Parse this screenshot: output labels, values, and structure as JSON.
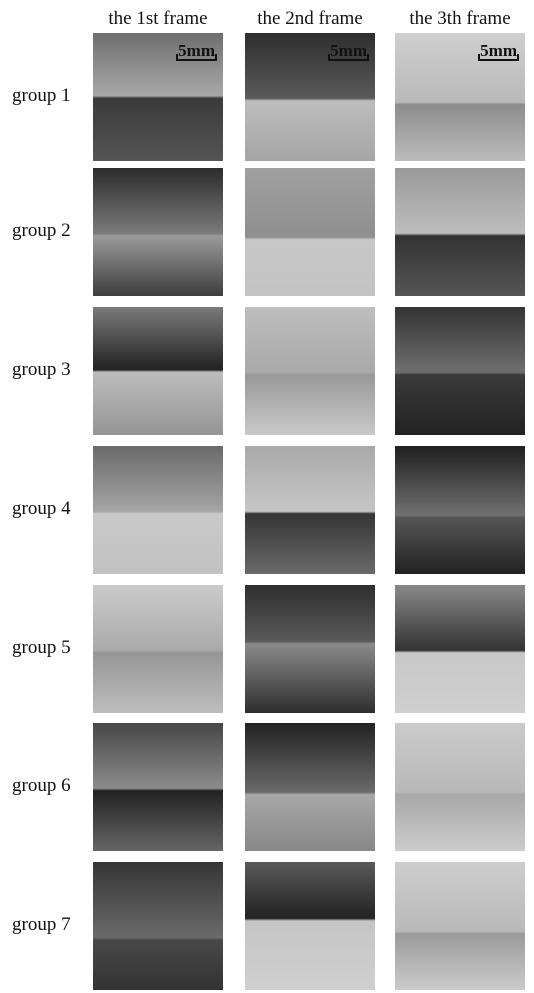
{
  "column_headers": [
    "the 1st frame",
    "the 2nd frame",
    "the 3th frame"
  ],
  "row_labels": [
    "group 1",
    "group 2",
    "group 3",
    "group 4",
    "group 5",
    "group 6",
    "group 7"
  ],
  "scale_bars": [
    "5mm",
    "5mm",
    "5mm"
  ]
}
